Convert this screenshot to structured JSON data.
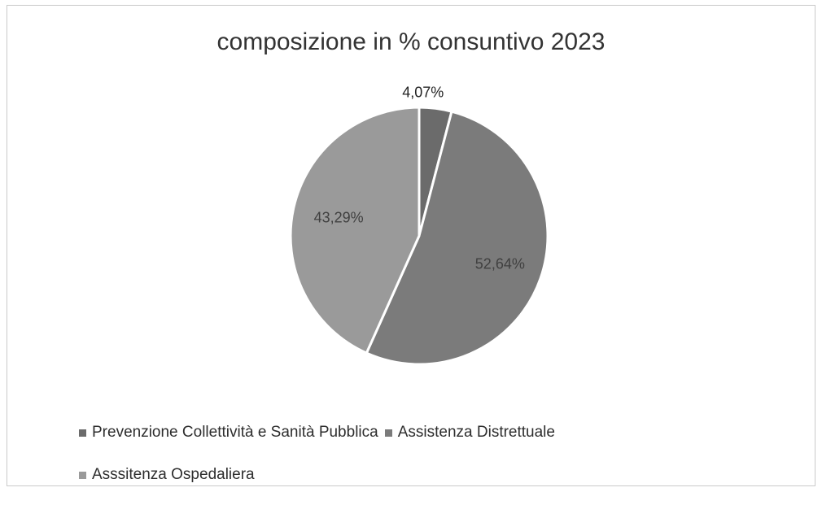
{
  "chart_data": {
    "type": "pie",
    "title": "composizione in % consuntivo 2023",
    "slices": [
      {
        "name": "Prevenzione Collettività e Sanità Pubblica",
        "value": 4.07,
        "label": "4,07%",
        "color": "#6b6b6b"
      },
      {
        "name": "Assistenza Distrettuale",
        "value": 52.64,
        "label": "52,64%",
        "color": "#7b7b7b"
      },
      {
        "name": "Asssitenza Ospedaliera",
        "value": 43.29,
        "label": "43,29%",
        "color": "#9a9a9a"
      }
    ],
    "legend_position": "bottom",
    "start_angle": "12 o'clock",
    "direction": "clockwise"
  },
  "legend": {
    "rows": [
      [
        0,
        1
      ],
      [
        2
      ]
    ]
  },
  "colors": {
    "background": "#ffffff",
    "border": "#c9c9c9",
    "separator": "#ffffff"
  }
}
